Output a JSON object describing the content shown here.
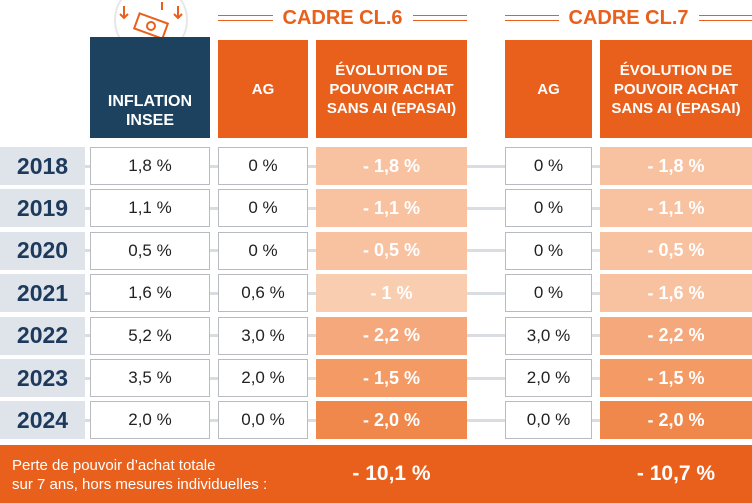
{
  "header": {
    "inflation": "INFLATION INSEE",
    "groups": [
      {
        "title": "CADRE CL.6",
        "columns": [
          "AG",
          "ÉVOLUTION DE POUVOIR ACHAT SANS AI (EPASAI)"
        ]
      },
      {
        "title": "CADRE CL.7",
        "columns": [
          "AG",
          "ÉVOLUTION DE POUVOIR ACHAT SANS AI (EPASAI)"
        ]
      }
    ]
  },
  "table": {
    "rows": [
      [
        "2018",
        "1,8 %",
        "0 %",
        "- 1,8 %",
        "0 %",
        "- 1,8 %"
      ],
      [
        "2019",
        "1,1 %",
        "0 %",
        "- 1,1 %",
        "0 %",
        "- 1,1 %"
      ],
      [
        "2020",
        "0,5 %",
        "0 %",
        "- 0,5 %",
        "0 %",
        "- 0,5 %"
      ],
      [
        "2021",
        "1,6 %",
        "0,6 %",
        "- 1 %",
        "0 %",
        "- 1,6 %"
      ],
      [
        "2022",
        "5,2 %",
        "3,0 %",
        "- 2,2 %",
        "3,0 %",
        "- 2,2 %"
      ],
      [
        "2023",
        "3,5 %",
        "2,0 %",
        "- 1,5 %",
        "2,0 %",
        "- 1,5 %"
      ],
      [
        "2024",
        "2,0 %",
        "0,0 %",
        "- 2,0 %",
        "0,0 %",
        "- 2,0 %"
      ]
    ]
  },
  "footer": {
    "label": [
      "Perte de pouvoir d’achat totale",
      "sur 7 ans, hors mesures individuelles :"
    ],
    "totals": [
      "- 10,1 %",
      "- 10,7 %"
    ]
  }
}
